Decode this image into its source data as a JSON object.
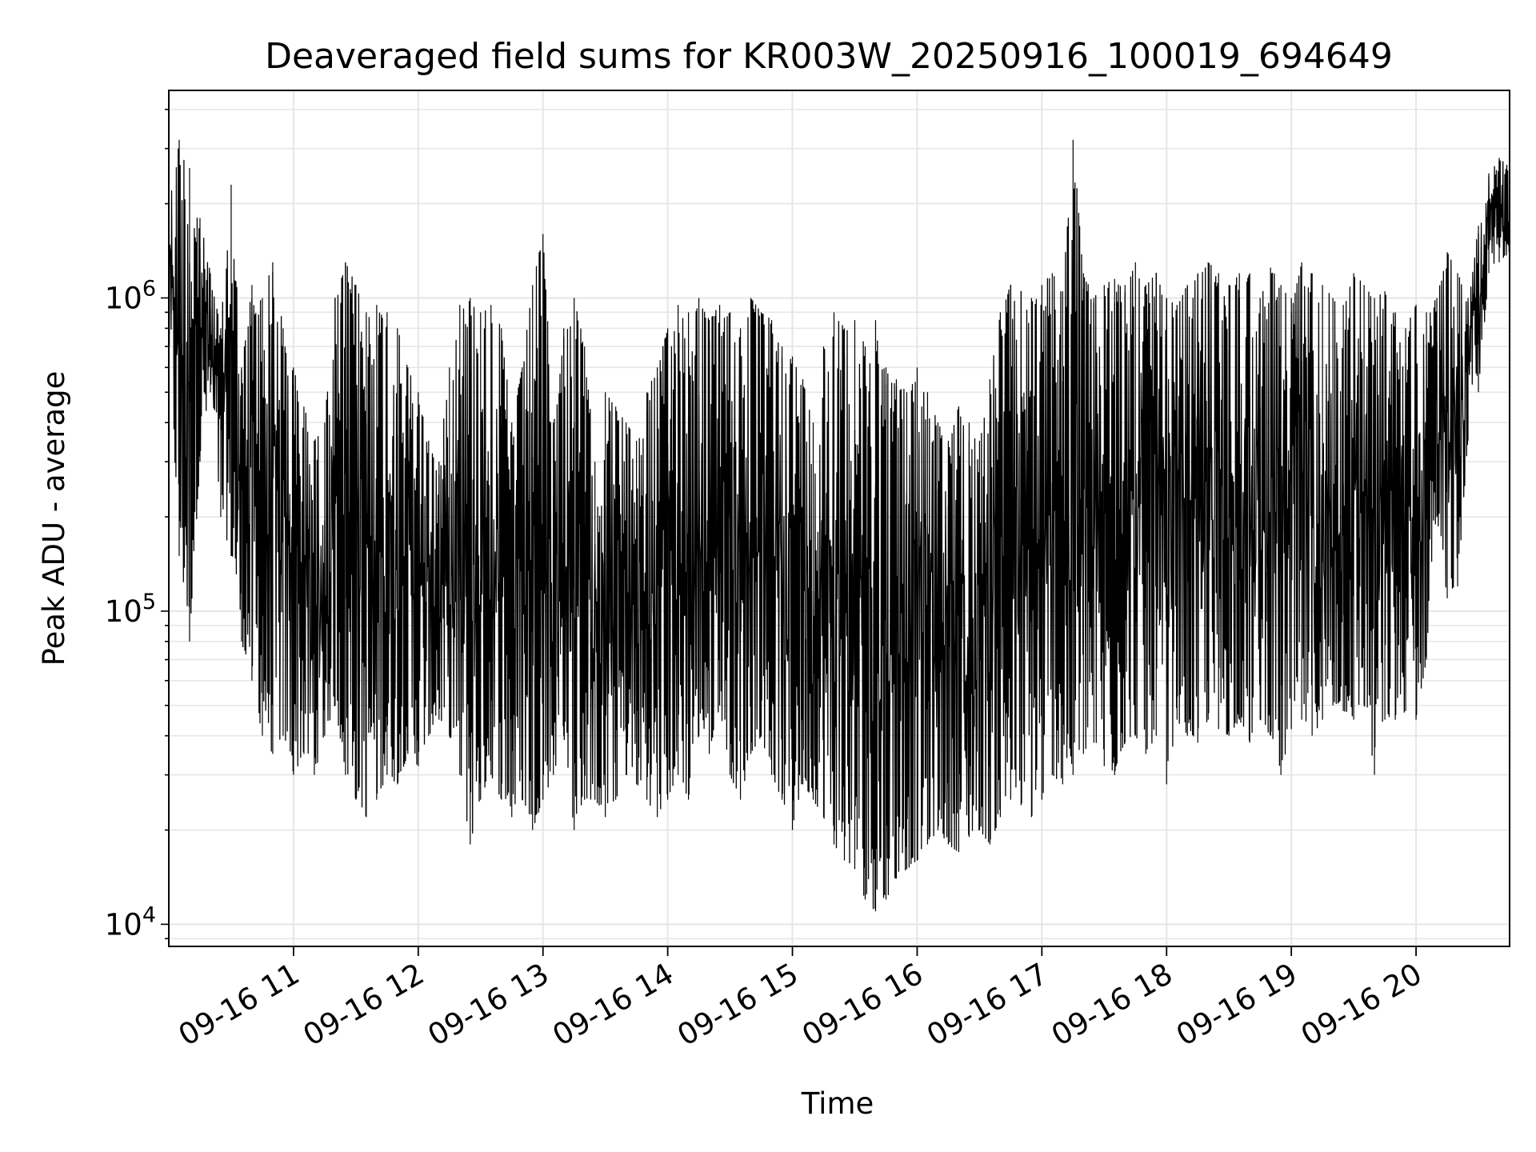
{
  "chart_data": {
    "type": "line",
    "title": "Deaveraged field sums for KR003W_20250916_100019_694649",
    "xlabel": "Time",
    "ylabel": "Peak ADU - average",
    "yscale": "log",
    "ylim": [
      8500,
      4600000
    ],
    "xlim": [
      "2025-09-16 10:00",
      "2025-09-16 20:45"
    ],
    "grid": true,
    "x_ticks": [
      "09-16 11",
      "09-16 12",
      "09-16 13",
      "09-16 14",
      "09-16 15",
      "09-16 16",
      "09-16 17",
      "09-16 18",
      "09-16 19",
      "09-16 20"
    ],
    "y_ticks": [
      {
        "value": 10000,
        "base": "10",
        "exp": "4"
      },
      {
        "value": 100000,
        "base": "10",
        "exp": "5"
      },
      {
        "value": 1000000,
        "base": "10",
        "exp": "6"
      }
    ],
    "series": [
      {
        "color": "#000000",
        "x": [
          "2025-09-16 10:00",
          "2025-09-16 10:05",
          "2025-09-16 10:10",
          "2025-09-16 10:15",
          "2025-09-16 10:20",
          "2025-09-16 10:25",
          "2025-09-16 10:30",
          "2025-09-16 10:35",
          "2025-09-16 10:40",
          "2025-09-16 10:45",
          "2025-09-16 10:50",
          "2025-09-16 10:55",
          "2025-09-16 11:00",
          "2025-09-16 11:05",
          "2025-09-16 11:10",
          "2025-09-16 11:15",
          "2025-09-16 11:20",
          "2025-09-16 11:25",
          "2025-09-16 11:30",
          "2025-09-16 11:35",
          "2025-09-16 11:40",
          "2025-09-16 11:45",
          "2025-09-16 11:50",
          "2025-09-16 11:55",
          "2025-09-16 12:00",
          "2025-09-16 12:05",
          "2025-09-16 12:10",
          "2025-09-16 12:15",
          "2025-09-16 12:20",
          "2025-09-16 12:25",
          "2025-09-16 12:30",
          "2025-09-16 12:35",
          "2025-09-16 12:40",
          "2025-09-16 12:45",
          "2025-09-16 12:50",
          "2025-09-16 12:55",
          "2025-09-16 13:00",
          "2025-09-16 13:05",
          "2025-09-16 13:10",
          "2025-09-16 13:15",
          "2025-09-16 13:20",
          "2025-09-16 13:25",
          "2025-09-16 13:30",
          "2025-09-16 13:35",
          "2025-09-16 13:40",
          "2025-09-16 13:45",
          "2025-09-16 13:50",
          "2025-09-16 13:55",
          "2025-09-16 14:00",
          "2025-09-16 14:05",
          "2025-09-16 14:10",
          "2025-09-16 14:15",
          "2025-09-16 14:20",
          "2025-09-16 14:25",
          "2025-09-16 14:30",
          "2025-09-16 14:35",
          "2025-09-16 14:40",
          "2025-09-16 14:45",
          "2025-09-16 14:50",
          "2025-09-16 14:55",
          "2025-09-16 15:00",
          "2025-09-16 15:05",
          "2025-09-16 15:10",
          "2025-09-16 15:15",
          "2025-09-16 15:20",
          "2025-09-16 15:25",
          "2025-09-16 15:30",
          "2025-09-16 15:35",
          "2025-09-16 15:40",
          "2025-09-16 15:45",
          "2025-09-16 15:50",
          "2025-09-16 15:55",
          "2025-09-16 16:00",
          "2025-09-16 16:05",
          "2025-09-16 16:10",
          "2025-09-16 16:15",
          "2025-09-16 16:20",
          "2025-09-16 16:25",
          "2025-09-16 16:30",
          "2025-09-16 16:35",
          "2025-09-16 16:40",
          "2025-09-16 16:45",
          "2025-09-16 16:50",
          "2025-09-16 16:55",
          "2025-09-16 17:00",
          "2025-09-16 17:05",
          "2025-09-16 17:10",
          "2025-09-16 17:15",
          "2025-09-16 17:20",
          "2025-09-16 17:25",
          "2025-09-16 17:30",
          "2025-09-16 17:35",
          "2025-09-16 17:40",
          "2025-09-16 17:45",
          "2025-09-16 17:50",
          "2025-09-16 17:55",
          "2025-09-16 18:00",
          "2025-09-16 18:05",
          "2025-09-16 18:10",
          "2025-09-16 18:15",
          "2025-09-16 18:20",
          "2025-09-16 18:25",
          "2025-09-16 18:30",
          "2025-09-16 18:35",
          "2025-09-16 18:40",
          "2025-09-16 18:45",
          "2025-09-16 18:50",
          "2025-09-16 18:55",
          "2025-09-16 19:00",
          "2025-09-16 19:05",
          "2025-09-16 19:10",
          "2025-09-16 19:15",
          "2025-09-16 19:20",
          "2025-09-16 19:25",
          "2025-09-16 19:30",
          "2025-09-16 19:35",
          "2025-09-16 19:40",
          "2025-09-16 19:45",
          "2025-09-16 19:50",
          "2025-09-16 19:55",
          "2025-09-16 20:00",
          "2025-09-16 20:05",
          "2025-09-16 20:10",
          "2025-09-16 20:15",
          "2025-09-16 20:20",
          "2025-09-16 20:25",
          "2025-09-16 20:30",
          "2025-09-16 20:35",
          "2025-09-16 20:40",
          "2025-09-16 20:45"
        ],
        "y_low": [
          700000,
          150000,
          80000,
          300000,
          500000,
          200000,
          150000,
          80000,
          60000,
          40000,
          35000,
          40000,
          30000,
          35000,
          30000,
          40000,
          50000,
          30000,
          25000,
          22000,
          25000,
          30000,
          28000,
          35000,
          32000,
          40000,
          45000,
          40000,
          30000,
          18000,
          25000,
          30000,
          25000,
          22000,
          25000,
          20000,
          25000,
          30000,
          40000,
          20000,
          25000,
          25000,
          22000,
          25000,
          30000,
          28000,
          25000,
          22000,
          25000,
          30000,
          25000,
          40000,
          35000,
          50000,
          30000,
          25000,
          35000,
          40000,
          30000,
          25000,
          20000,
          28000,
          25000,
          22000,
          18000,
          16000,
          15000,
          12000,
          11000,
          12000,
          14000,
          15000,
          16000,
          18000,
          20000,
          18000,
          17000,
          19000,
          20000,
          18000,
          22000,
          25000,
          24000,
          22000,
          25000,
          30000,
          28000,
          30000,
          35000,
          38000,
          32000,
          30000,
          38000,
          40000,
          35000,
          40000,
          28000,
          45000,
          40000,
          38000,
          45000,
          42000,
          40000,
          45000,
          38000,
          45000,
          40000,
          30000,
          42000,
          45000,
          40000,
          45000,
          50000,
          48000,
          45000,
          50000,
          30000,
          45000,
          45000,
          48000,
          45000,
          70000,
          200000,
          110000,
          120000,
          350000,
          500000,
          1200000,
          1300000,
          1400000
        ],
        "y_high": [
          2000000,
          3200000,
          2600000,
          1800000,
          1200000,
          800000,
          2300000,
          600000,
          1100000,
          1000000,
          1300000,
          800000,
          600000,
          450000,
          350000,
          400000,
          1000000,
          1300000,
          1100000,
          900000,
          950000,
          900000,
          800000,
          600000,
          500000,
          350000,
          300000,
          600000,
          950000,
          1000000,
          900000,
          950000,
          800000,
          400000,
          600000,
          1100000,
          1600000,
          400000,
          800000,
          1000000,
          700000,
          300000,
          500000,
          450000,
          400000,
          350000,
          500000,
          600000,
          800000,
          950000,
          900000,
          1000000,
          850000,
          950000,
          900000,
          800000,
          1000000,
          900000,
          850000,
          700000,
          650000,
          550000,
          400000,
          700000,
          900000,
          800000,
          850000,
          700000,
          850000,
          600000,
          550000,
          500000,
          600000,
          500000,
          400000,
          350000,
          450000,
          400000,
          350000,
          550000,
          900000,
          1100000,
          1050000,
          1000000,
          1100000,
          1200000,
          1050000,
          3200000,
          1200000,
          1000000,
          1100000,
          1150000,
          1100000,
          1300000,
          1100000,
          1200000,
          1000000,
          950000,
          1100000,
          1200000,
          1300000,
          1200000,
          1100000,
          1200000,
          1200000,
          1000000,
          1250000,
          1100000,
          1000000,
          1300000,
          1200000,
          1100000,
          1000000,
          950000,
          1200000,
          1100000,
          1000000,
          1050000,
          900000,
          800000,
          950000,
          900000,
          1000000,
          1400000,
          1200000,
          1000000,
          1700000,
          2500000,
          2800000,
          2600000
        ]
      }
    ]
  }
}
